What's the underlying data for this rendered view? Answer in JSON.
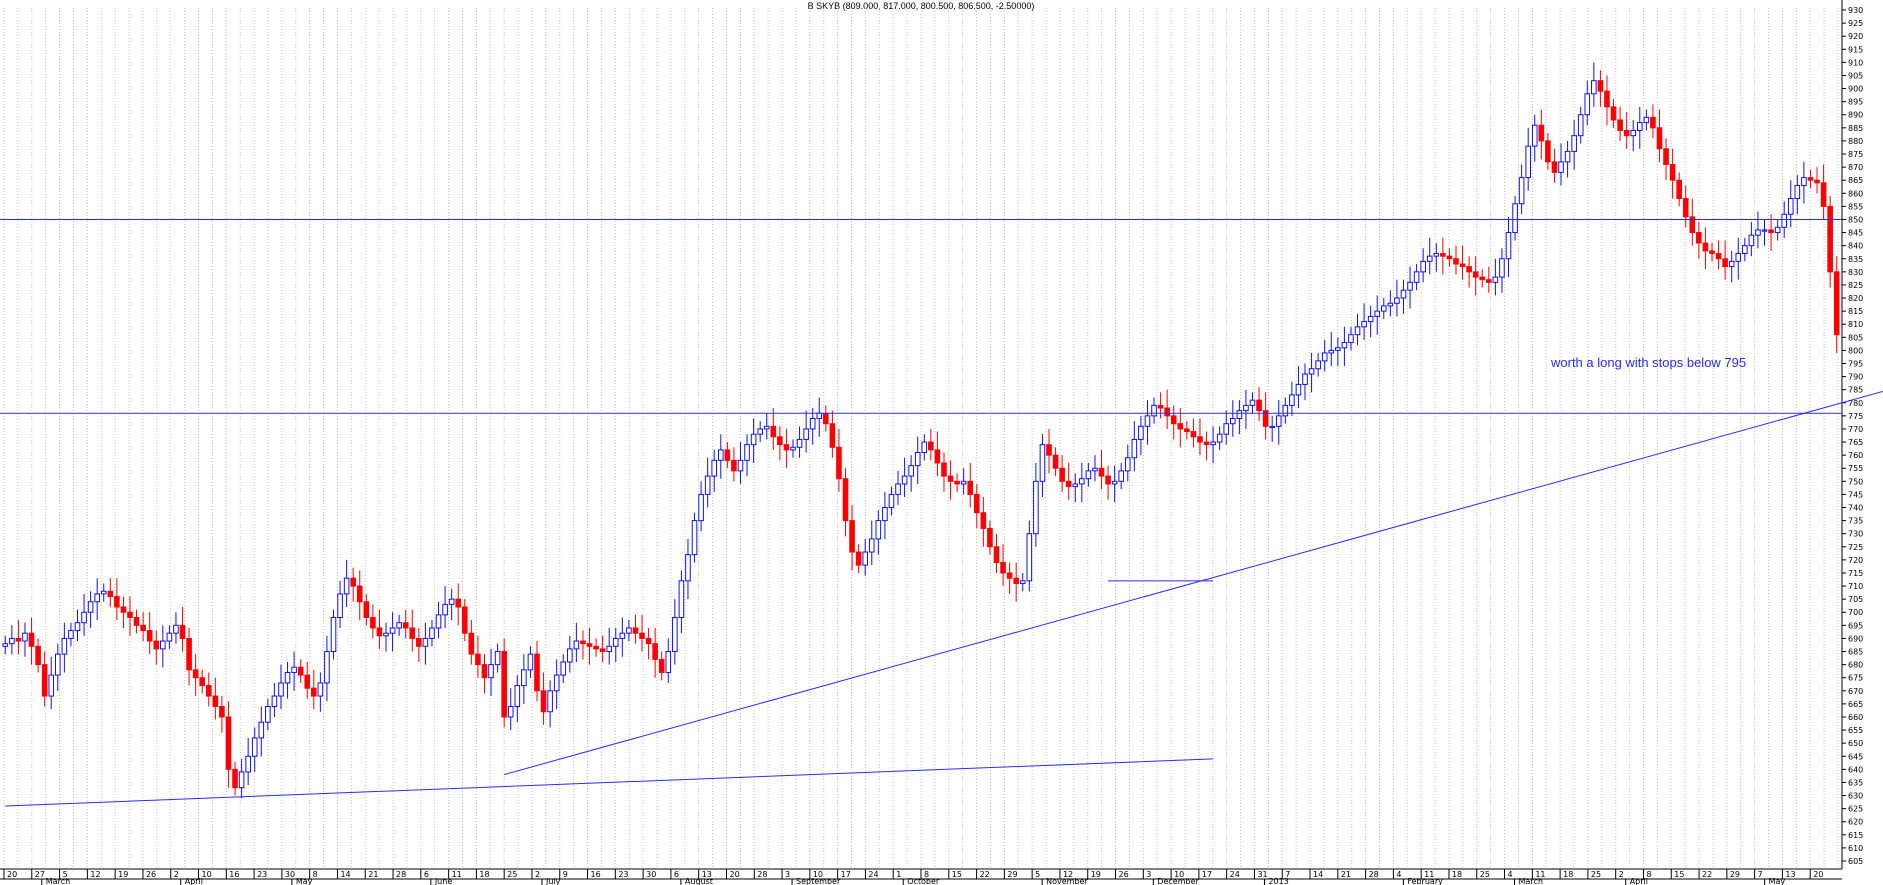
{
  "chart_data": {
    "type": "candlestick",
    "title": "B SKYB (809.000, 817.000, 800.500, 806.500, -2.50000)",
    "y_range": [
      605,
      930
    ],
    "y_ticks": [
      605,
      610,
      615,
      620,
      625,
      630,
      635,
      640,
      645,
      650,
      655,
      660,
      665,
      670,
      675,
      680,
      685,
      690,
      695,
      700,
      705,
      710,
      715,
      720,
      725,
      730,
      735,
      740,
      745,
      750,
      755,
      760,
      765,
      770,
      775,
      780,
      785,
      790,
      795,
      800,
      805,
      810,
      815,
      820,
      825,
      830,
      835,
      840,
      845,
      850,
      855,
      860,
      865,
      870,
      875,
      880,
      885,
      890,
      895,
      900,
      905,
      910,
      915,
      920,
      925,
      930
    ],
    "x_day_labels": [
      "20",
      "27",
      "5",
      "12",
      "19",
      "26",
      "2",
      "10",
      "16",
      "23",
      "30",
      "8",
      "14",
      "21",
      "28",
      "6",
      "11",
      "18",
      "25",
      "2",
      "9",
      "16",
      "23",
      "30",
      "6",
      "13",
      "20",
      "28",
      "3",
      "10",
      "17",
      "24",
      "1",
      "8",
      "15",
      "22",
      "29",
      "5",
      "12",
      "19",
      "26",
      "3",
      "10",
      "17",
      "24",
      "31",
      "7",
      "14",
      "21",
      "28",
      "4",
      "11",
      "18",
      "25",
      "4",
      "11",
      "18",
      "25",
      "2",
      "8",
      "15",
      "22",
      "29",
      "7",
      "13",
      "20"
    ],
    "x_month_labels": [
      "March",
      "April",
      "May",
      "June",
      "July",
      "August",
      "September",
      "October",
      "November",
      "December",
      "2013",
      "February",
      "March",
      "April",
      "May"
    ],
    "horizontal_lines": [
      850,
      776
    ],
    "trendlines": [
      {
        "from_bar": 0,
        "from_price": 626,
        "to_bar": 184,
        "to_price": 644
      },
      {
        "from_bar": 76,
        "from_price": 638,
        "to_bar": 320,
        "to_price": 808
      },
      {
        "from_bar": 168,
        "from_price": 712,
        "to_bar": 184,
        "to_price": 712
      }
    ],
    "annotation": "worth a long with stops below 795",
    "closes": [
      688,
      690,
      689,
      692,
      687,
      680,
      668,
      676,
      684,
      690,
      693,
      696,
      700,
      704,
      707,
      708,
      706,
      702,
      700,
      698,
      695,
      693,
      689,
      686,
      689,
      692,
      695,
      690,
      678,
      675,
      672,
      668,
      664,
      660,
      640,
      633,
      639,
      645,
      652,
      658,
      664,
      668,
      673,
      677,
      679,
      676,
      671,
      668,
      673,
      685,
      698,
      707,
      713,
      710,
      704,
      698,
      694,
      691,
      692,
      694,
      696,
      694,
      690,
      687,
      690,
      694,
      699,
      703,
      705,
      702,
      692,
      684,
      680,
      675,
      680,
      685,
      660,
      664,
      672,
      678,
      684,
      670,
      662,
      670,
      676,
      681,
      686,
      689,
      688,
      687,
      686,
      685,
      687,
      690,
      692,
      694,
      692,
      690,
      688,
      682,
      677,
      685,
      698,
      712,
      722,
      735,
      745,
      752,
      758,
      762,
      758,
      754,
      758,
      764,
      768,
      770,
      771,
      767,
      764,
      762,
      763,
      766,
      770,
      774,
      776,
      772,
      763,
      751,
      735,
      723,
      718,
      723,
      728,
      735,
      740,
      745,
      749,
      752,
      756,
      761,
      765,
      762,
      757,
      752,
      750,
      749,
      750,
      745,
      738,
      732,
      725,
      719,
      715,
      713,
      711,
      712,
      730,
      750,
      764,
      760,
      755,
      750,
      748,
      749,
      751,
      754,
      755,
      752,
      749,
      750,
      754,
      759,
      766,
      771,
      775,
      779,
      778,
      775,
      772,
      770,
      769,
      767,
      765,
      764,
      765,
      768,
      772,
      774,
      777,
      779,
      781,
      777,
      771,
      771,
      775,
      779,
      783,
      787,
      791,
      793,
      796,
      799,
      800,
      801,
      803,
      806,
      809,
      811,
      813,
      815,
      817,
      818,
      820,
      823,
      826,
      830,
      834,
      836,
      837,
      836,
      835,
      833,
      832,
      830,
      828,
      827,
      826,
      828,
      835,
      845,
      856,
      866,
      878,
      886,
      880,
      872,
      868,
      872,
      876,
      882,
      890,
      898,
      903,
      899,
      893,
      888,
      884,
      882,
      884,
      887,
      889,
      885,
      877,
      871,
      865,
      858,
      851,
      845,
      841,
      838,
      837,
      835,
      832,
      834,
      837,
      840,
      844,
      846,
      846,
      845,
      847,
      852,
      858,
      863,
      866,
      865,
      864,
      855,
      830,
      806
    ]
  }
}
